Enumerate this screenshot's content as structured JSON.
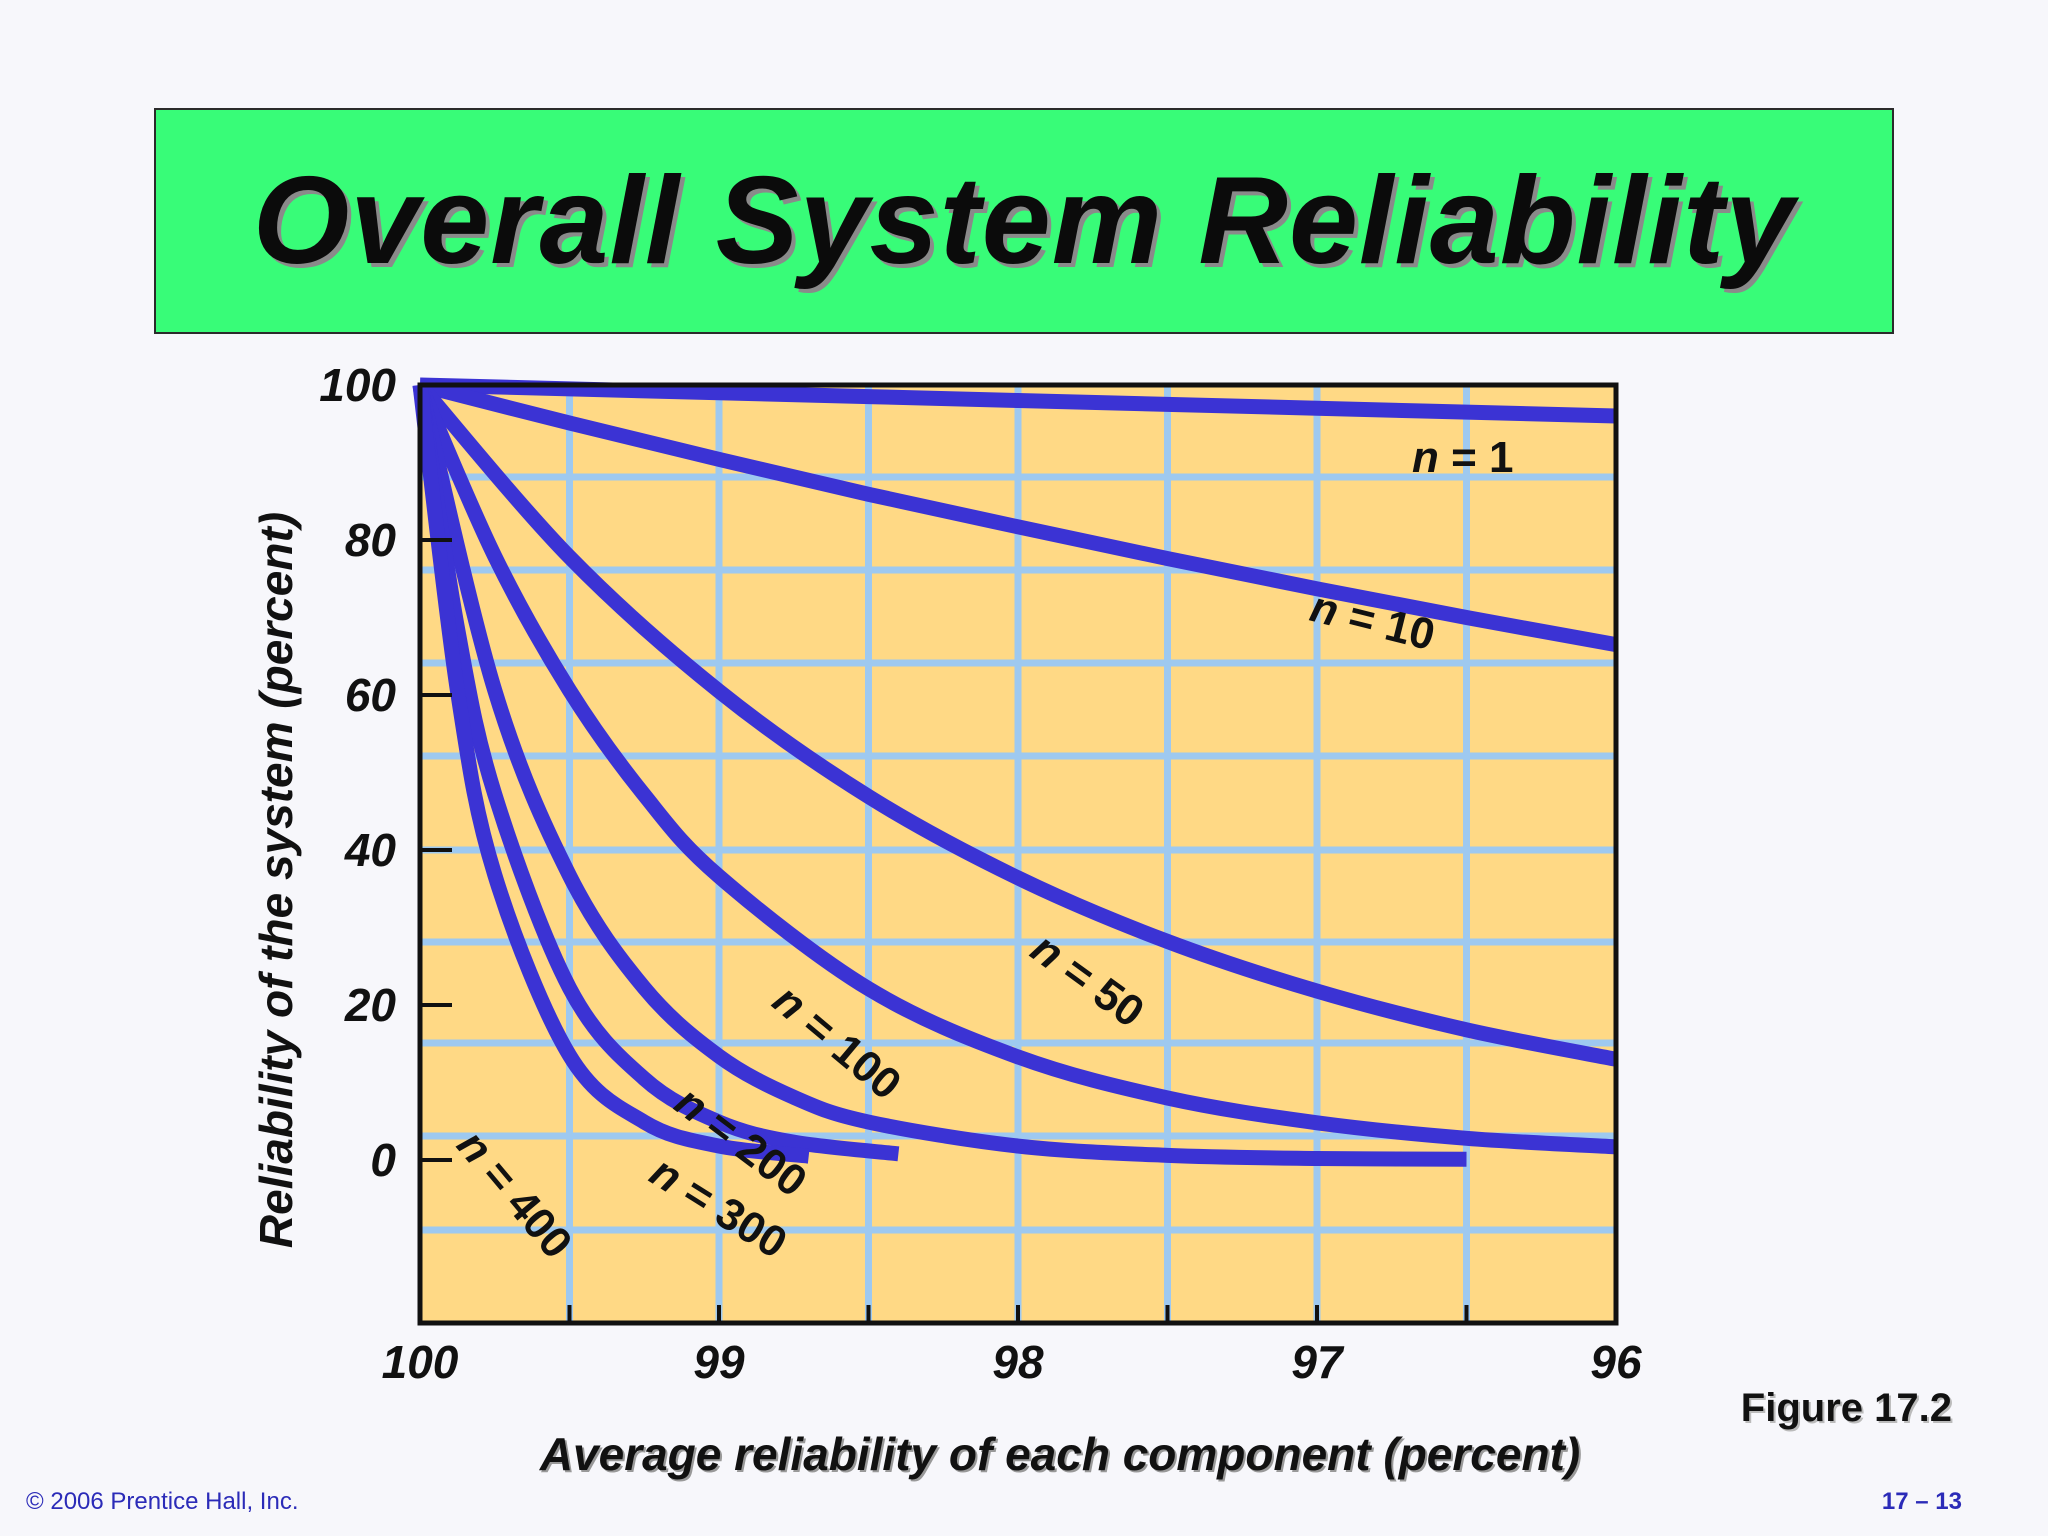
{
  "header": {
    "title": "Overall System Reliability"
  },
  "chart_data": {
    "type": "line",
    "title": "",
    "xlabel": "Average reliability of each component (percent)",
    "ylabel": "Reliability of the system (percent)",
    "x_ticks": [
      "100",
      "99",
      "98",
      "97",
      "96"
    ],
    "y_ticks": [
      "100",
      "80",
      "60",
      "40",
      "20",
      "0"
    ],
    "xlim": [
      100,
      96
    ],
    "ylim": [
      0,
      100
    ],
    "grid": true,
    "colors": {
      "plot_bg": "#ffd985",
      "grid": "#9ec9f0",
      "line": "#3b33d4",
      "axis": "#111111"
    },
    "series": [
      {
        "name": "n = 1",
        "x": [
          100,
          99,
          98,
          97,
          96
        ],
        "y": [
          100,
          99,
          98,
          97,
          96
        ]
      },
      {
        "name": "n = 10",
        "x": [
          100,
          99.5,
          99,
          98.5,
          98,
          97.5,
          97,
          96.5,
          96
        ],
        "y": [
          100,
          95.1,
          90.4,
          85.9,
          81.7,
          77.6,
          73.7,
          70.0,
          66.5
        ]
      },
      {
        "name": "n = 50",
        "x": [
          100,
          99.5,
          99,
          98.5,
          98,
          97.5,
          97,
          96.5,
          96
        ],
        "y": [
          100,
          77.8,
          60.5,
          46.9,
          36.4,
          28.2,
          21.8,
          16.8,
          13.0
        ]
      },
      {
        "name": "n = 100",
        "x": [
          100,
          99.75,
          99.5,
          99.25,
          99,
          98.5,
          98,
          97.5,
          97,
          96.5,
          96
        ],
        "y": [
          100,
          77.9,
          60.6,
          47.1,
          36.6,
          22.1,
          13.3,
          8.0,
          4.8,
          2.8,
          1.7
        ]
      },
      {
        "name": "n = 200",
        "x": [
          100,
          99.75,
          99.5,
          99.25,
          99,
          98.75,
          98.5,
          98,
          97.5,
          97,
          96.5
        ],
        "y": [
          100,
          60.6,
          36.7,
          22.2,
          13.4,
          8.1,
          4.9,
          1.8,
          0.6,
          0.2,
          0.1
        ]
      },
      {
        "name": "n = 300",
        "x": [
          100,
          99.875,
          99.75,
          99.5,
          99.25,
          99,
          98.75,
          98.4
        ],
        "y": [
          100,
          68.7,
          47.2,
          22.2,
          10.5,
          4.9,
          2.3,
          0.8
        ]
      },
      {
        "name": "n = 400",
        "x": [
          100,
          99.875,
          99.75,
          99.5,
          99.25,
          99,
          98.7
        ],
        "y": [
          100,
          60.6,
          36.8,
          13.5,
          4.9,
          1.8,
          0.5
        ]
      }
    ],
    "curve_labels": [
      "n = 1",
      "n = 10",
      "n = 50",
      "n = 100",
      "n = 200",
      "n = 300",
      "n = 400"
    ]
  },
  "footer": {
    "figure": "Figure 17.2",
    "copyright": "© 2006 Prentice Hall, Inc.",
    "page": "17 – 13"
  }
}
